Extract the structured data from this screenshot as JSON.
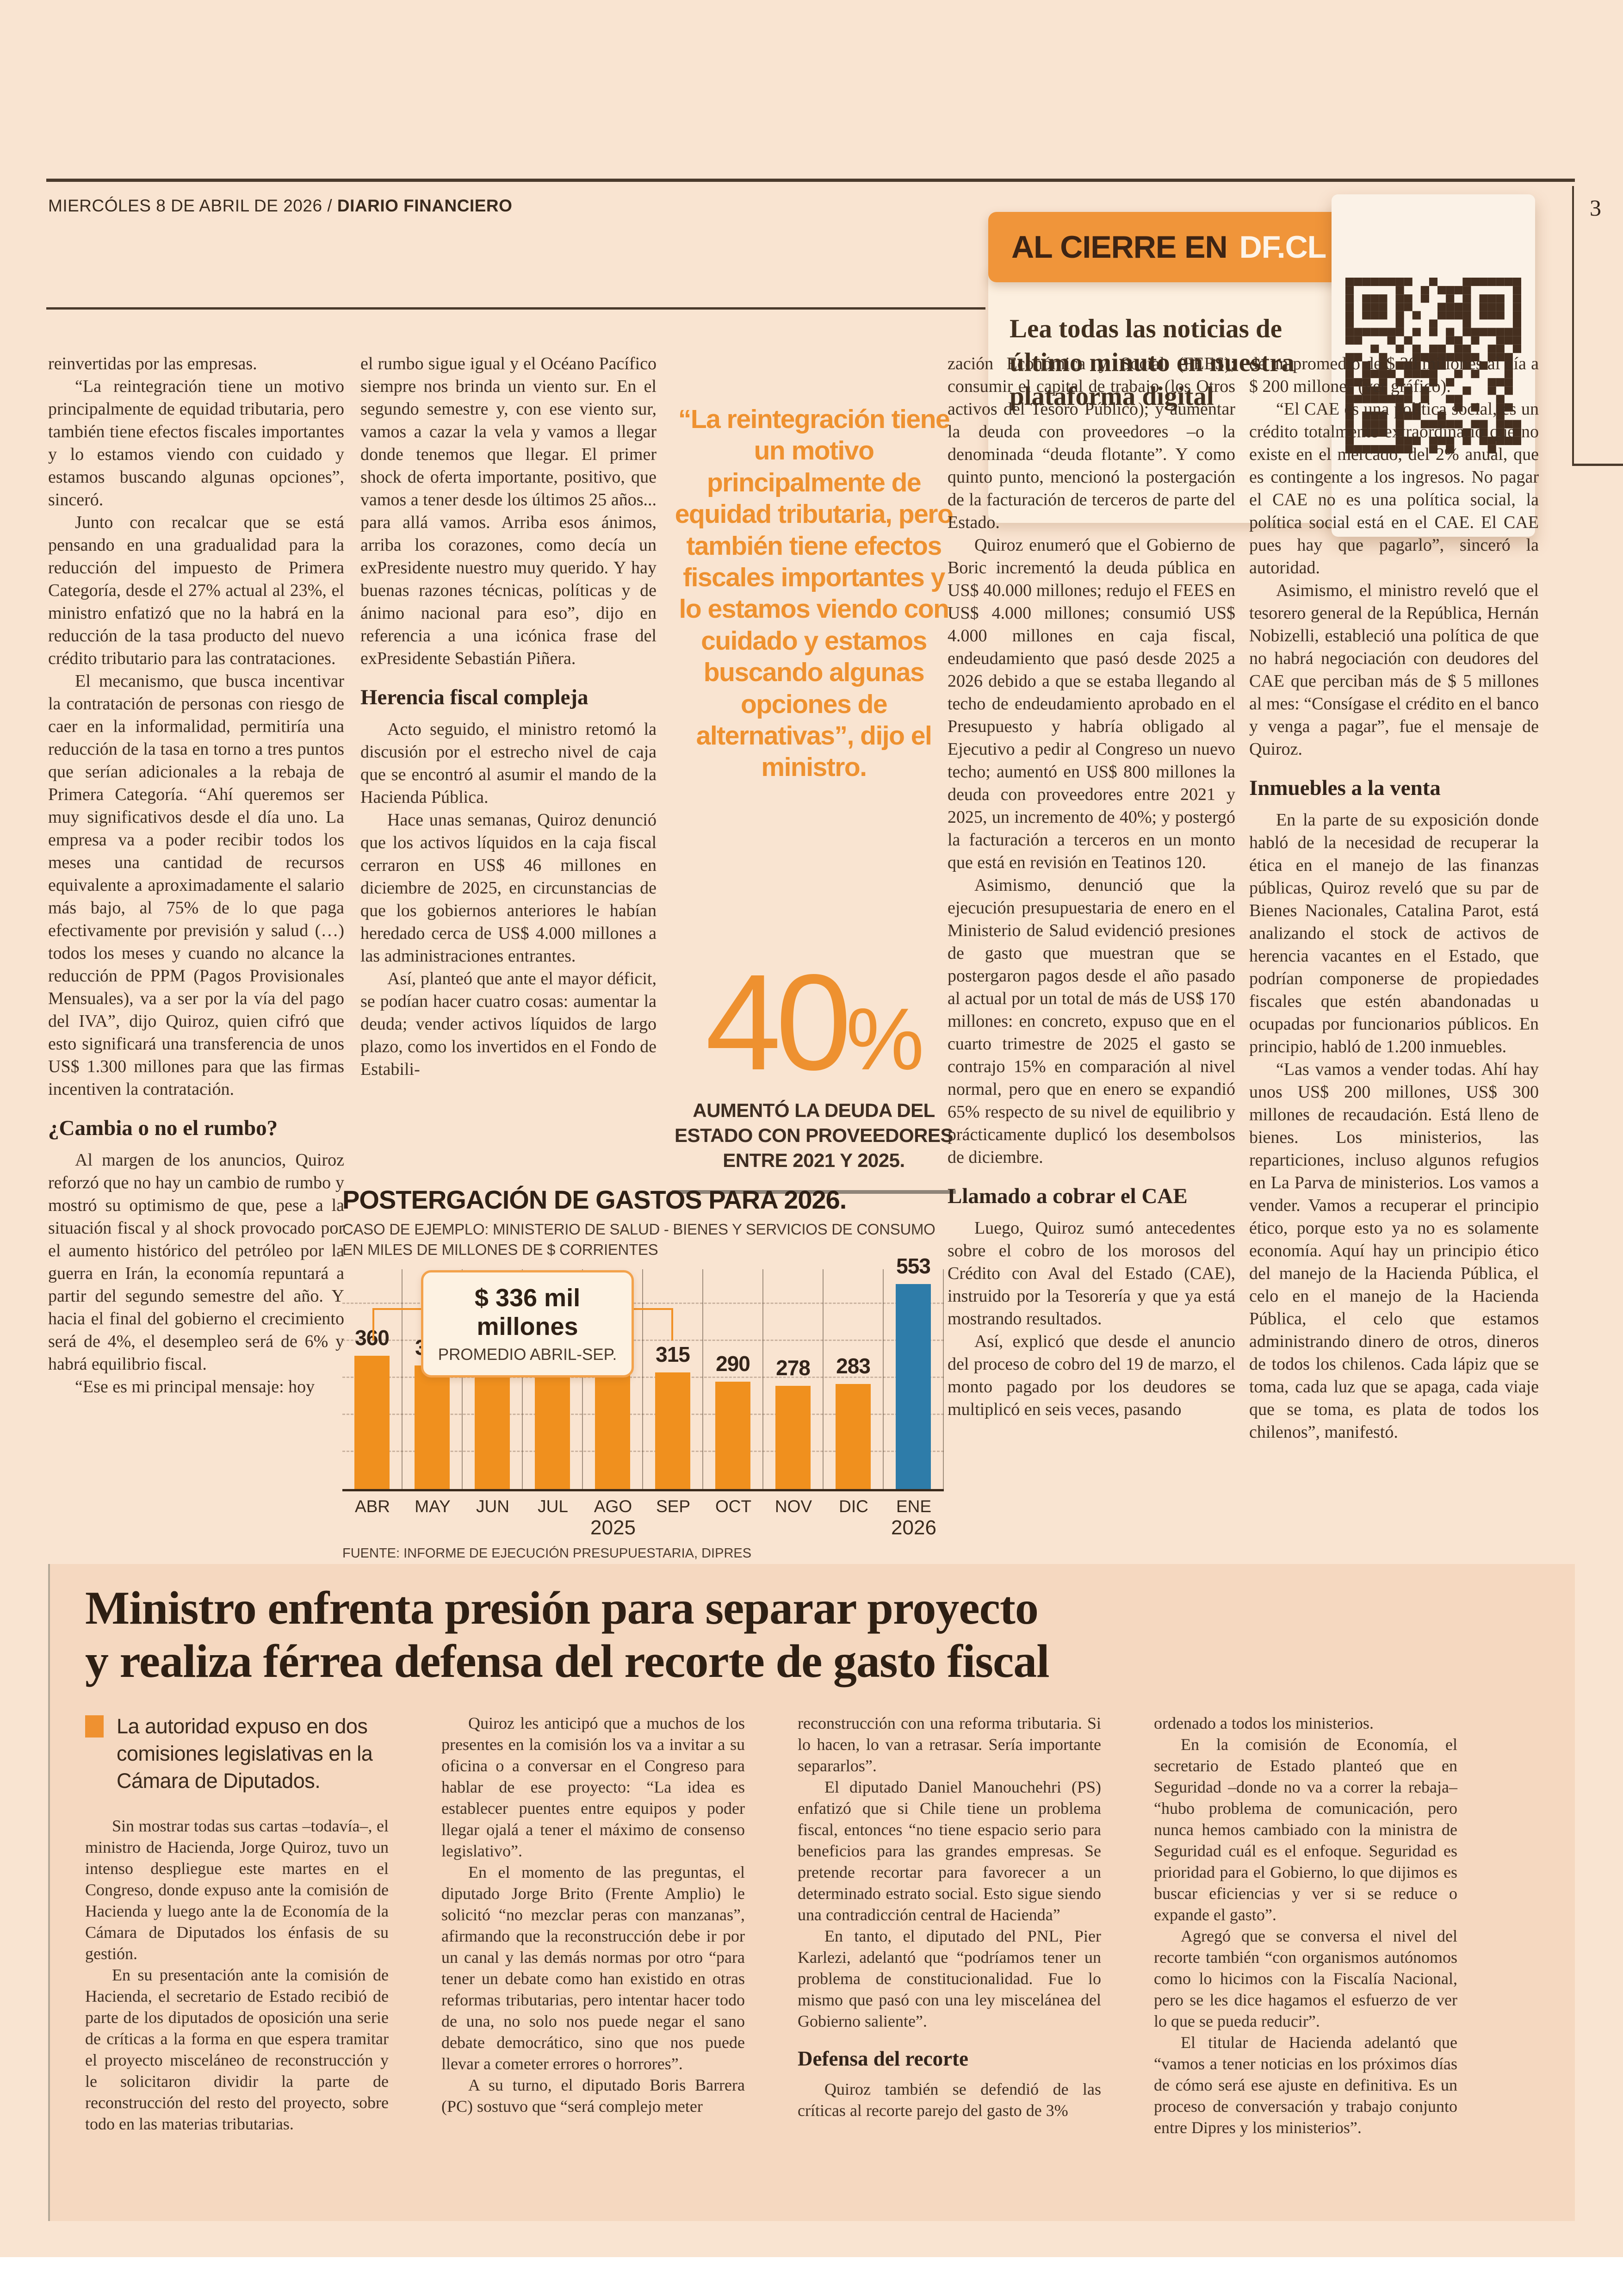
{
  "palette": {
    "page_bg": "#f9e4d1",
    "section_bg": "#f5d8c0",
    "ink": "#402f22",
    "accent_orange": "#f0901e",
    "accent_blue": "#2e7ca9"
  },
  "header": {
    "date_prefix": "MIERCÓLES 8 DE ABRIL DE 2026 / ",
    "brand": "DIARIO FINANCIERO",
    "page_number": "3"
  },
  "al_cierre": {
    "label_prefix": "AL CIERRE EN",
    "label_brand": "DF.CL",
    "text": "Lea todas las noticias de último minuto en nuestra plataforma digital"
  },
  "main": {
    "col1": [
      "reinvertidas por las empresas.",
      "“La reintegración tiene un motivo principalmente de equidad tributaria, pero también tiene efectos fiscales importantes y lo estamos viendo con cuidado y estamos buscando algunas opciones”, sinceró.",
      "Junto con recalcar que se está pensando en una gradualidad para la reducción del impuesto de Primera Categoría, desde el 27% actual al 23%, el ministro enfatizó que no la habrá en la reducción de la tasa producto del nuevo crédito tributario para las contrataciones.",
      "El mecanismo, que busca incentivar la contratación de personas con riesgo de caer en la informalidad, permitiría una reducción de la tasa en torno a tres puntos que serían adicionales a la rebaja de Primera Categoría. “Ahí queremos ser muy significativos desde el día uno. La empresa va a poder recibir todos los meses una cantidad de recursos equivalente a aproximadamente el salario más bajo, al 75% de lo que paga efectivamente por previsión y salud (…) todos los meses y cuando no alcance la reducción de PPM (Pagos Provisionales Mensuales), va a ser por la vía del pago del IVA”, dijo Quiroz, quien cifró que esto significará una transferencia de unos US$ 1.300 millones para que las firmas incentiven la contratación."
    ],
    "col1_subhead": "¿Cambia o no el rumbo?",
    "col1b": [
      "Al margen de los anuncios, Quiroz reforzó que no hay un cambio de rumbo y mostró su optimismo de que, pese a la situación fiscal y al shock provocado por el aumento histórico del petróleo por la guerra en Irán, la economía repuntará a partir del segundo semestre del año. Y hacia el final del gobierno el crecimiento será de 4%, el desempleo será de 6% y habrá equilibrio fiscal.",
      "“Ese es mi principal mensaje: hoy"
    ],
    "col2": [
      "el rumbo sigue igual y el Océano Pacífico siempre nos brinda un viento sur. En el segundo semestre y, con ese viento sur, vamos a cazar la vela y vamos a llegar donde tenemos que llegar. El primer shock de oferta importante, positivo, que vamos a tener desde los últimos 25 años... para allá vamos. Arriba esos ánimos, arriba los corazones, como decía un exPresidente nuestro muy querido. Y hay buenas razones técnicas, políticas y de ánimo nacional para eso”, dijo en referencia a una icónica frase del exPresidente Sebastián Piñera."
    ],
    "col2_subhead": "Herencia fiscal compleja",
    "col2b": [
      "Acto seguido, el ministro retomó la discusión por el estrecho nivel de caja que se encontró al asumir el mando de la Hacienda Pública.",
      "Hace unas semanas, Quiroz denunció que los activos líquidos en la caja fiscal cerraron en US$ 46 millones en diciembre de 2025, en circunstancias de que los gobiernos anteriores le habían heredado cerca de US$ 4.000 millones a las administraciones entrantes.",
      "Así, planteó que ante el mayor déficit, se podían hacer cuatro cosas: aumentar la deuda; vender activos líquidos de largo plazo, como los invertidos en el Fondo de Estabili-"
    ],
    "quote": "“La reintegración tiene un motivo principalmente de equidad tributaria, pero también tiene efectos fiscales importantes y lo estamos viendo con cuidado y estamos buscando algunas opciones de alternativas”, dijo el ministro.",
    "stat": {
      "value": "40",
      "unit": "%",
      "caption": "AUMENTÓ LA DEUDA DEL ESTADO CON PROVEEDORES ENTRE 2021 Y 2025."
    },
    "col4": [
      "zación Económica y Social (FEES); consumir el capital de trabajo (los Otros activos del Tesoro Público); y aumentar la deuda con proveedores –o la denominada “deuda flotante”. Y como quinto punto, mencionó la postergación de la facturación de terceros de parte del Estado.",
      "Quiroz enumeró que el Gobierno de Boric incrementó la deuda pública en US$ 40.000 millones; redujo el FEES en US$ 4.000 millones; consumió US$ 4.000 millones en caja fiscal, endeudamiento que pasó desde 2025 a 2026 debido a que se estaba llegando al techo de endeudamiento aprobado en el Presupuesto y habría obligado al Ejecutivo a pedir al Congreso un nuevo techo; aumentó en US$ 800 millones la deuda con proveedores entre 2021 y 2025, un incremento de 40%; y postergó la facturación a terceros en un monto que está en revisión en Teatinos 120.",
      "Asimismo, denunció que la ejecución presupuestaria de enero en el Ministerio de Salud evidenció presiones de gasto que muestran que se postergaron pagos desde el año pasado al actual por un total de más de US$ 170 millones: en concreto, expuso que en el cuarto trimestre de 2025 el gasto se contrajo 15% en comparación al nivel normal, pero que en enero se expandió 65% respecto de su nivel de equilibrio y prácticamente duplicó los desembolsos de diciembre."
    ],
    "col4_subhead": "Llamado a cobrar el CAE",
    "col4b": [
      "Luego, Quiroz sumó antecedentes sobre el cobro de los morosos del Crédito con Aval del Estado (CAE), instruido por la Tesorería y que ya está mostrando resultados.",
      "Así, explicó que desde el anuncio del proceso de cobro del 19 de marzo, el monto pagado por los deudores se multiplicó en seis veces, pasando"
    ],
    "col5": [
      "de un promedio de $ 30 millones al día a $ 200 millones (ver gráfico).",
      "“El CAE es una política social, es un crédito totalmente extraordinario que no existe en el mercado, del 2% anual, que es contingente a los ingresos. No pagar el CAE no es una política social, la política social está en el CAE. El CAE pues hay que pagarlo”, sinceró la autoridad.",
      "Asimismo, el ministro reveló que el tesorero general de la República, Hernán Nobizelli, estableció una política de que no habrá negociación con deudores del CAE que perciban más de $ 5 millones al mes: “Consígase el crédito en el banco y venga a pagar”, fue el mensaje de Quiroz."
    ],
    "col5_subhead": "Inmuebles a la venta",
    "col5b": [
      "En la parte de su exposición donde habló de la necesidad de recuperar la ética en el manejo de las finanzas públicas, Quiroz reveló que su par de Bienes Nacionales, Catalina Parot, está analizando el stock de activos de herencia vacantes en el Estado, que podrían componerse de propiedades fiscales que estén abandonadas u ocupadas por funcionarios públicos. En principio, habló de 1.200 inmuebles.",
      "“Las vamos a vender todas. Ahí hay unos US$ 200 millones, US$ 300 millones de recaudación. Está lleno de bienes. Los ministerios, las reparticiones, incluso algunos refugios en La Parva de ministerios. Los vamos a vender. Vamos a recuperar el principio ético, porque esto ya no es solamente economía. Aquí hay un principio ético del manejo de la Hacienda Pública, el celo en el manejo de la Hacienda Pública, el celo que estamos administrando dinero de otros, dineros de todos los chilenos. Cada lápiz que se toma, cada luz que se apaga, cada viaje que se toma, es plata de todos los chilenos”, manifestó."
    ]
  },
  "chart_data": {
    "type": "bar",
    "title": "POSTERGACIÓN DE GASTOS PARA 2026.",
    "subtitle": "CASO DE EJEMPLO: MINISTERIO DE SALUD - BIENES Y SERVICIOS DE CONSUMO",
    "unit_line": "EN MILES DE MILLONES DE $ CORRIENTES",
    "categories": [
      "ABR",
      "MAY",
      "JUN",
      "JUL",
      "AGO",
      "SEP",
      "OCT",
      "NOV",
      "DIC",
      "ENE"
    ],
    "values": [
      360,
      334,
      342,
      338,
      331,
      315,
      290,
      278,
      283,
      553
    ],
    "year_left": "2025",
    "year_right": "2026",
    "annotation": {
      "value": "$ 336 mil millones",
      "label": "PROMEDIO ABRIL-SEP."
    },
    "source": "FUENTE: INFORME DE EJECUCIÓN PRESUPUESTARIA, DIPRES",
    "bar_color": "#f0901e",
    "highlight_color": "#2e7ca9",
    "highlight_index": 9,
    "ylim": [
      0,
      600
    ],
    "grid": "horizontal-dashed"
  },
  "bottom_article": {
    "headline_line1": "Ministro enfrenta presión para separar proyecto",
    "headline_line2": "y realiza férrea defensa del recorte de gasto fiscal",
    "lead": "La autoridad expuso en dos comisiones legislativas en la Cámara de Diputados.",
    "col1": [
      "Sin mostrar todas sus cartas –todavía–, el ministro de Hacienda, Jorge Quiroz, tuvo un intenso despliegue este martes en el Congreso, donde expuso ante la comisión de Hacienda y luego ante la de Economía de la Cámara de Diputados los énfasis de su gestión.",
      "En su presentación ante la comisión de Hacienda, el secretario de Estado recibió de parte de los diputados de oposición una serie de críticas a la forma en que espera tramitar el proyecto misceláneo de reconstrucción y le solicitaron dividir la parte de reconstrucción del resto del proyecto, sobre todo en las materias tributarias."
    ],
    "col2": [
      "Quiroz les anticipó que a muchos de los presentes en la comisión los va a invitar a su oficina o a conversar en el Congreso para hablar de ese proyecto: “La idea es establecer puentes entre equipos y poder llegar ojalá a tener el máximo de consenso legislativo”.",
      "En el momento de las preguntas, el diputado Jorge Brito (Frente Amplio) le solicitó “no mezclar peras con manzanas”, afirmando que la reconstrucción debe ir por un canal y las demás normas por otro “para tener un debate como han existido en otras reformas tributarias, pero intentar hacer todo de una, no solo nos puede negar el sano debate democrático, sino que nos puede llevar a cometer errores o horrores”.",
      "A su turno, el diputado Boris Barrera (PC) sostuvo que “será complejo meter"
    ],
    "col3": [
      "reconstrucción con una reforma tributaria. Si lo hacen, lo van a retrasar. Sería importante separarlos”.",
      "El diputado Daniel Manouchehri (PS) enfatizó que si Chile tiene un problema fiscal, entonces “no tiene espacio serio para beneficios para las grandes empresas. Se pretende recortar para favorecer a un determinado estrato social. Esto sigue siendo una contradicción central de Hacienda”",
      "En tanto, el diputado del PNL, Pier Karlezi, adelantó que “podríamos tener un problema de constitucionalidad. Fue lo mismo que pasó con una ley miscelánea del Gobierno saliente”."
    ],
    "col3_subhead": "Defensa del recorte",
    "col3b": [
      "Quiroz también se defendió de las críticas al recorte parejo del gasto de 3%"
    ],
    "col4": [
      "ordenado a todos los ministerios.",
      "En la comisión de Economía, el secretario de Estado planteó que en Seguridad –donde no va a correr la rebaja– “hubo problema de comunicación, pero nunca hemos cambiado con la ministra de Seguridad cuál es el enfoque. Seguridad es prioridad para el Gobierno, lo que dijimos es buscar eficiencias y ver si se reduce o expande el gasto”.",
      "Agregó que se conversa el nivel del recorte también “con organismos autónomos como lo hicimos con la Fiscalía Nacional, pero se les dice hagamos el esfuerzo de ver lo que se pueda reducir”.",
      "El titular de Hacienda adelantó que “vamos a tener noticias en los próximos días de cómo será ese ajuste en definitiva. Es un proceso de conversación y trabajo conjunto entre Dipres y los ministerios”."
    ]
  }
}
